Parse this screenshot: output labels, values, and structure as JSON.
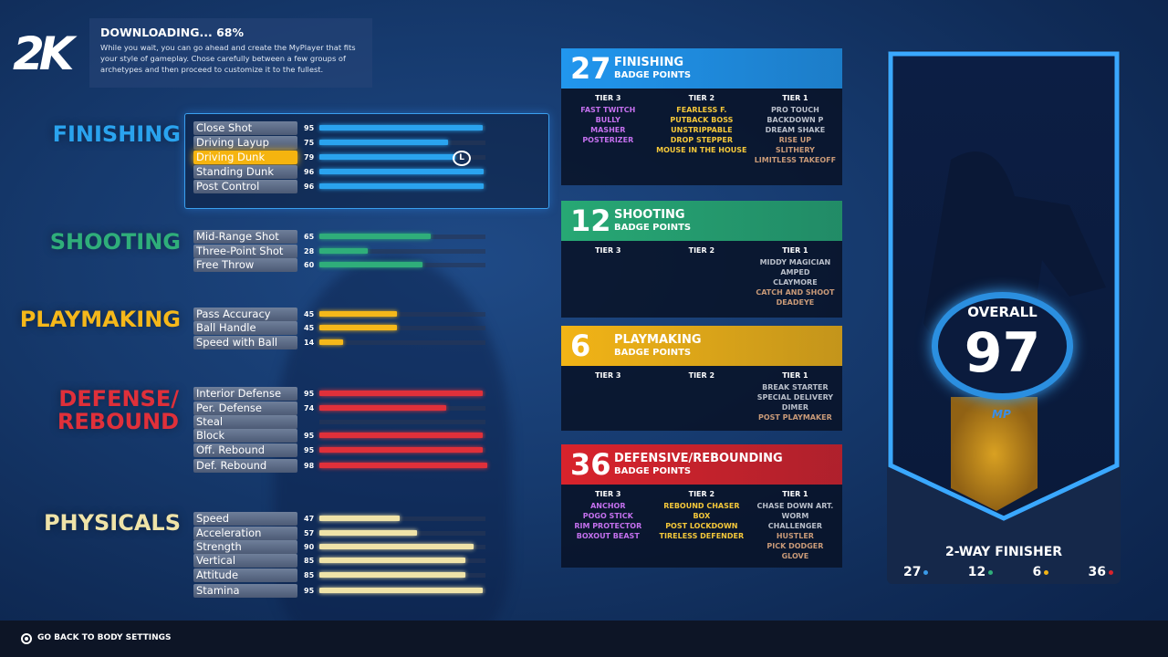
{
  "logo": "2K",
  "download": {
    "title": "DOWNLOADING... 68%",
    "progress_percent": 68,
    "text": "While you wait, you can go ahead and create the MyPlayer that fits your style of gameplay. Chose carefully between a few groups of archetypes and then proceed to customize it to the fullest."
  },
  "categories": [
    {
      "title": "FINISHING",
      "color": "#2aa3ee",
      "attributes": [
        [
          "Close Shot",
          95
        ],
        [
          "Driving Layup",
          75
        ],
        [
          "Driving Dunk",
          79
        ],
        [
          "Standing Dunk",
          96
        ],
        [
          "Post Control",
          96
        ]
      ],
      "selected": "Driving Dunk"
    },
    {
      "title": "SHOOTING",
      "color": "#2fae7a",
      "attributes": [
        [
          "Mid-Range Shot",
          65
        ],
        [
          "Three-Point Shot",
          28
        ],
        [
          "Free Throw",
          60
        ]
      ]
    },
    {
      "title": "PLAYMAKING",
      "color": "#f5b81a",
      "attributes": [
        [
          "Pass Accuracy",
          45
        ],
        [
          "Ball Handle",
          45
        ],
        [
          "Speed with Ball",
          14
        ]
      ]
    },
    {
      "title": "DEFENSE/ REBOUND",
      "color": "#e0303a",
      "attributes": [
        [
          "Interior Defense",
          95
        ],
        [
          "Per. Defense",
          74
        ],
        [
          "Steal",
          ""
        ],
        [
          "Block",
          95
        ],
        [
          "Off. Rebound",
          95
        ],
        [
          "Def. Rebound",
          98
        ]
      ]
    },
    {
      "title": "PHYSICALS",
      "color": "#efe3a8",
      "attributes": [
        [
          "Speed",
          47
        ],
        [
          "Acceleration",
          57
        ],
        [
          "Strength",
          90
        ],
        [
          "Vertical",
          85
        ],
        [
          "Attitude",
          85
        ],
        [
          "Stamina",
          95
        ]
      ]
    }
  ],
  "cursor_icon": "L-stick-icon",
  "tier_labels": [
    "TIER 3",
    "TIER 2",
    "TIER 1"
  ],
  "badge_points_label": "BADGE POINTS",
  "badges": [
    {
      "points": "27",
      "title": "FINISHING",
      "color": "#2196ee",
      "tiers": [
        [
          [
            "FAST TWITCH",
            "hof"
          ],
          [
            "BULLY",
            "hof"
          ],
          [
            "MASHER",
            "hof"
          ],
          [
            "POSTERIZER",
            "hof"
          ]
        ],
        [
          [
            "FEARLESS F.",
            "gold"
          ],
          [
            "PUTBACK BOSS",
            "gold"
          ],
          [
            "UNSTRIPPABLE",
            "gold"
          ],
          [
            "DROP STEPPER",
            "gold"
          ],
          [
            "MOUSE IN THE HOUSE",
            "gold"
          ]
        ],
        [
          [
            "PRO TOUCH",
            "silver"
          ],
          [
            "BACKDOWN P",
            "silver"
          ],
          [
            "DREAM SHAKE",
            "silver"
          ],
          [
            "RISE UP",
            "bronze"
          ],
          [
            "SLITHERY",
            "bronze"
          ],
          [
            "LIMITLESS TAKEOFF",
            "bronze"
          ]
        ]
      ]
    },
    {
      "points": "12",
      "title": "SHOOTING",
      "color": "#27a874",
      "tiers": [
        [],
        [],
        [
          [
            "MIDDY MAGICIAN",
            "silver"
          ],
          [
            "AMPED",
            "silver"
          ],
          [
            "CLAYMORE",
            "silver"
          ],
          [
            "CATCH AND SHOOT",
            "bronze"
          ],
          [
            "DEADEYE",
            "bronze"
          ]
        ]
      ]
    },
    {
      "points": "6",
      "title": "PLAYMAKING",
      "color": "#f2b416",
      "tiers": [
        [],
        [],
        [
          [
            "BREAK STARTER",
            "silver"
          ],
          [
            "SPECIAL DELIVERY",
            "silver"
          ],
          [
            "DIMER",
            "silver"
          ],
          [
            "POST PLAYMAKER",
            "bronze"
          ]
        ]
      ]
    },
    {
      "points": "36",
      "title": "DEFENSIVE/REBOUNDING",
      "color": "#d8232c",
      "tiers": [
        [
          [
            "ANCHOR",
            "hof"
          ],
          [
            "POGO STICK",
            "hof"
          ],
          [
            "RIM PROTECTOR",
            "hof"
          ],
          [
            "BOXOUT BEAST",
            "hof"
          ]
        ],
        [
          [
            "REBOUND CHASER",
            "gold"
          ],
          [
            "BOX",
            "gold"
          ],
          [
            "POST LOCKDOWN",
            "gold"
          ],
          [
            "TIRELESS DEFENDER",
            "gold"
          ]
        ],
        [
          [
            "CHASE DOWN ART.",
            "silver"
          ],
          [
            "WORM",
            "silver"
          ],
          [
            "CHALLENGER",
            "silver"
          ],
          [
            "HUSTLER",
            "bronze"
          ],
          [
            "PICK DODGER",
            "bronze"
          ],
          [
            "GLOVE",
            "bronze"
          ]
        ]
      ]
    }
  ],
  "card": {
    "overall_label": "OVERALL",
    "overall": "97",
    "mp_logo": "MP",
    "archetype": "2-WAY FINISHER",
    "points": [
      {
        "v": "27",
        "color": "#3a9ae8"
      },
      {
        "v": "12",
        "color": "#2fae7a"
      },
      {
        "v": "6",
        "color": "#f2b416"
      },
      {
        "v": "36",
        "color": "#d8232c"
      }
    ]
  },
  "footer": {
    "back_label": "GO BACK TO BODY SETTINGS"
  }
}
